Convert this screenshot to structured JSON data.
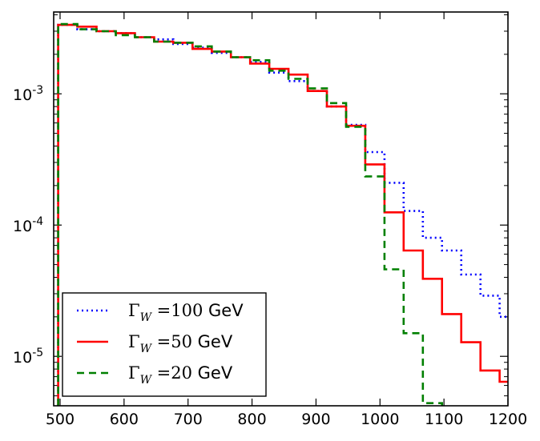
{
  "chart_data": {
    "type": "line",
    "step": true,
    "xscale": "linear",
    "yscale": "log",
    "xlim": [
      490,
      1200
    ],
    "ylim": [
      4.2e-06,
      0.0042
    ],
    "xticks": [
      500,
      600,
      700,
      800,
      900,
      1000,
      1100,
      1200
    ],
    "xtick_labels": [
      "500",
      "600",
      "700",
      "800",
      "900",
      "1000",
      "1100",
      "1200"
    ],
    "ytick_labels": [
      {
        "value": 0.001,
        "base": "10",
        "exp": "-3"
      },
      {
        "value": 0.0001,
        "base": "10",
        "exp": "-4"
      },
      {
        "value": 1e-05,
        "base": "10",
        "exp": "-5"
      }
    ],
    "bin_edges": [
      497,
      527,
      557,
      587,
      617,
      647,
      677,
      707,
      737,
      767,
      797,
      827,
      857,
      887,
      917,
      947,
      977,
      1007,
      1037,
      1067,
      1097,
      1127,
      1157,
      1187,
      1200
    ],
    "series": [
      {
        "name": "Γ_W = 100 GeV",
        "color": "#0000ff",
        "style": "dotted",
        "values": [
          0.00335,
          0.0031,
          0.003,
          0.0029,
          0.0027,
          0.0026,
          0.0024,
          0.00225,
          0.00205,
          0.0019,
          0.00175,
          0.00145,
          0.00125,
          0.00105,
          0.0008,
          0.00058,
          0.00036,
          0.00021,
          0.000128,
          8e-05,
          6.4e-05,
          4.2e-05,
          2.9e-05,
          2e-05
        ]
      },
      {
        "name": "Γ_W = 50 GeV",
        "color": "#ff0000",
        "style": "solid",
        "values": [
          0.00335,
          0.00325,
          0.003,
          0.0029,
          0.0027,
          0.0025,
          0.00245,
          0.0022,
          0.0021,
          0.0019,
          0.0017,
          0.00155,
          0.0014,
          0.00105,
          0.0008,
          0.00057,
          0.00029,
          0.000125,
          6.4e-05,
          3.9e-05,
          2.1e-05,
          1.28e-05,
          7.8e-06,
          6.4e-06
        ]
      },
      {
        "name": "Γ_W = 20 GeV",
        "color": "#008000",
        "style": "dashed",
        "values": [
          0.0034,
          0.0031,
          0.003,
          0.0028,
          0.0027,
          0.0025,
          0.00245,
          0.0023,
          0.0021,
          0.0019,
          0.0018,
          0.0015,
          0.0013,
          0.0011,
          0.00085,
          0.00056,
          0.000235,
          4.6e-05,
          1.5e-05,
          4.4e-06
        ]
      }
    ],
    "legend_placement": "lower-left",
    "legend": [
      {
        "symbol": "Γ",
        "sub": "W",
        "eq": " =",
        "num": "100",
        "unit": " GeV"
      },
      {
        "symbol": "Γ",
        "sub": "W",
        "eq": " =",
        "num": "50",
        "unit": " GeV"
      },
      {
        "symbol": "Γ",
        "sub": "W",
        "eq": " =",
        "num": "20",
        "unit": " GeV"
      }
    ],
    "title": "",
    "xlabel": "",
    "ylabel": ""
  }
}
